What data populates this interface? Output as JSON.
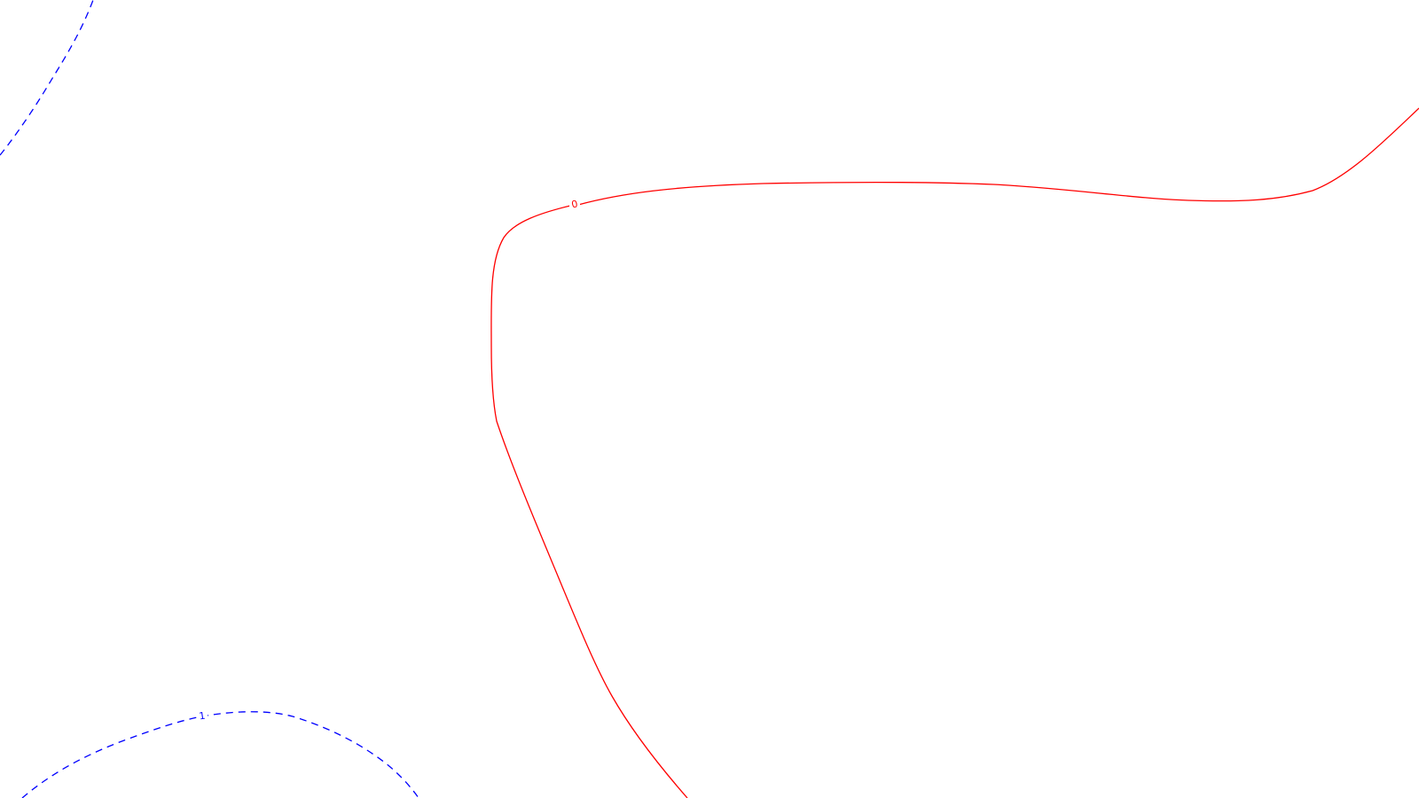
{
  "chart_data": {
    "type": "contour",
    "xlabel": "",
    "ylabel": "",
    "grid": false,
    "legend": "none",
    "contours": [
      {
        "level": "0",
        "color": "#ff0000",
        "style": "solid",
        "label": "0"
      },
      {
        "level": "1",
        "color": "#0000ff",
        "style": "dashed",
        "label": "1"
      },
      {
        "level": "1",
        "color": "#0000ff",
        "style": "dashed",
        "label": ""
      }
    ]
  }
}
